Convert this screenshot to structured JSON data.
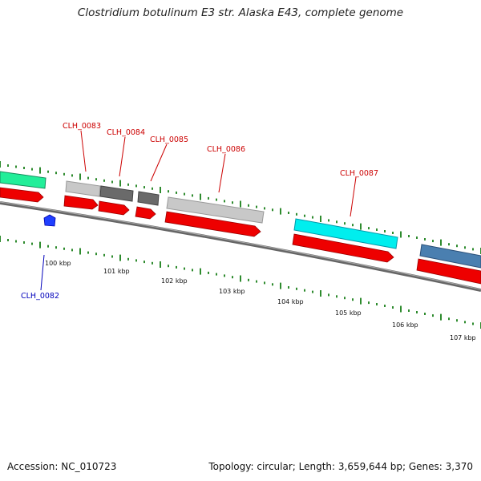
{
  "title": "Clostridium botulinum E3 str. Alaska E43, complete genome",
  "footer": {
    "accession": "Accession: NC_010723",
    "summary": "Topology: circular; Length: 3,659,644 bp; Genes: 3,370"
  },
  "colors": {
    "backbone": "#777777",
    "cds": "#ee0000",
    "tick": "#2e8b2e",
    "label_red": "#cc0000",
    "label_blue": "#0000bb",
    "gene_green": "#22ee99",
    "gene_light_gray": "#c8c8c8",
    "gene_dark_gray": "#6a6a6a",
    "gene_cyan": "#00eeee",
    "gene_steel": "#4a7fb0",
    "gene_blue": "#1f3fff"
  },
  "scale": {
    "labels": [
      "100 kbp",
      "101 kbp",
      "102 kbp",
      "103 kbp",
      "104 kbp",
      "105 kbp",
      "106 kbp",
      "107 kbp"
    ]
  },
  "gene_labels": [
    {
      "name": "CLH_0082",
      "strand": "reverse"
    },
    {
      "name": "CLH_0083",
      "strand": "forward"
    },
    {
      "name": "CLH_0084",
      "strand": "forward"
    },
    {
      "name": "CLH_0085",
      "strand": "forward"
    },
    {
      "name": "CLH_0086",
      "strand": "forward"
    },
    {
      "name": "CLH_0087",
      "strand": "forward"
    }
  ]
}
